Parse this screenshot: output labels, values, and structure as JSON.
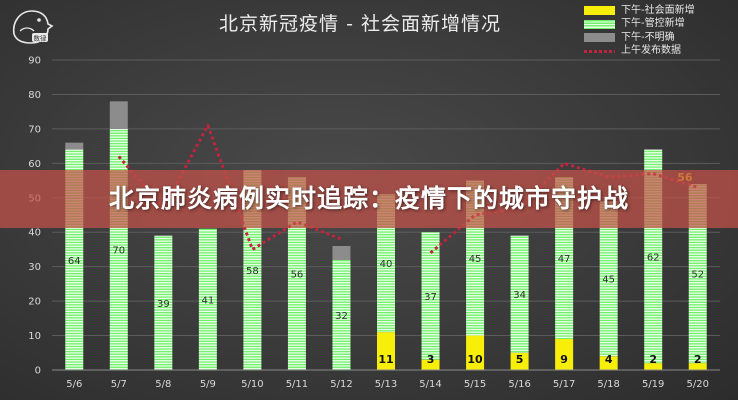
{
  "banner": {
    "text": "北京肺炎病例实时追踪：疫情下的城市守护战"
  },
  "logo": {
    "label": "数律"
  },
  "colors": {
    "background": "#3a3a3a",
    "community_new": "#f7ee0a",
    "controlled_new": "#72f06a",
    "unclear": "#8c8c8c",
    "morning_release": "#c2233e",
    "banner": "#c45248"
  },
  "chart_data": {
    "type": "bar",
    "stacked": true,
    "title": "北京新冠疫情 - 社会面新增情况",
    "xlabel": "",
    "ylabel": "",
    "ylim": [
      0,
      90
    ],
    "yticks": [
      0,
      10,
      20,
      30,
      40,
      50,
      60,
      70,
      80,
      90
    ],
    "grid": true,
    "legend_position": "top-right",
    "categories": [
      "5/6",
      "5/7",
      "5/8",
      "5/9",
      "5/10",
      "5/11",
      "5/12",
      "5/13",
      "5/14",
      "5/15",
      "5/16",
      "5/17",
      "5/18",
      "5/19",
      "5/20"
    ],
    "series": [
      {
        "name": "下午-社会面新增",
        "kind": "bar",
        "color": "#f7ee0a",
        "values": [
          0,
          0,
          0,
          0,
          0,
          0,
          0,
          11,
          3,
          10,
          5,
          9,
          4,
          2,
          2
        ],
        "labels": [
          "",
          "",
          "",
          "",
          "",
          "",
          "",
          "11",
          "3",
          "10",
          "5",
          "9",
          "4",
          "2",
          "2"
        ]
      },
      {
        "name": "下午-管控新增",
        "kind": "bar",
        "color": "#72f06a",
        "values": [
          64,
          70,
          39,
          41,
          58,
          56,
          32,
          40,
          37,
          45,
          34,
          47,
          45,
          62,
          52
        ],
        "labels": [
          "64",
          "70",
          "39",
          "41",
          "58",
          "56",
          "32",
          "40",
          "37",
          "45",
          "34",
          "47",
          "45",
          "62",
          "52"
        ]
      },
      {
        "name": "下午-不明确",
        "kind": "bar",
        "color": "#8c8c8c",
        "values": [
          2,
          8,
          0,
          0,
          0,
          0,
          4,
          0,
          0,
          0,
          0,
          0,
          0,
          0,
          0
        ]
      },
      {
        "name": "上午发布数据",
        "kind": "line",
        "style": "dotted",
        "color": "#c2233e",
        "values": [
          null,
          62,
          47,
          71,
          35,
          43,
          38,
          null,
          34,
          45,
          47,
          60,
          56,
          57,
          53
        ]
      }
    ],
    "annotations": [
      {
        "text": "56",
        "category": "5/19",
        "value": 56,
        "color": "#f2d21b"
      }
    ]
  }
}
